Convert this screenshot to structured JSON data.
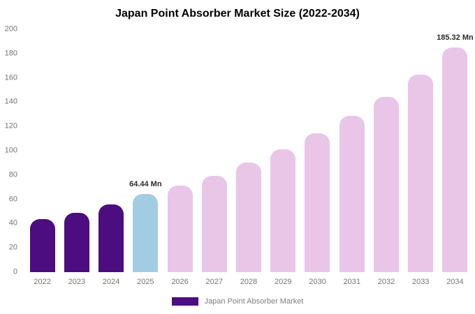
{
  "chart_data": {
    "type": "bar",
    "title": "Japan Point Absorber Market Size (2022-2034)",
    "categories": [
      "2022",
      "2023",
      "2024",
      "2025",
      "2026",
      "2027",
      "2028",
      "2029",
      "2030",
      "2031",
      "2032",
      "2033",
      "2034"
    ],
    "values": [
      43.5,
      49.0,
      55.5,
      64.44,
      71.0,
      79.5,
      90.0,
      101.0,
      114.5,
      128.5,
      144.5,
      162.5,
      185.32
    ],
    "xlabel": "",
    "ylabel": "",
    "ylim": [
      0,
      200
    ],
    "yticks": [
      0,
      20,
      40,
      60,
      80,
      100,
      120,
      140,
      160,
      180,
      200
    ],
    "grid": false,
    "legend_position": "bottom",
    "bar_colors": [
      "#4b0d80",
      "#4b0d80",
      "#4b0d80",
      "#a2cce2",
      "#e9c6e8",
      "#e9c6e8",
      "#e9c6e8",
      "#e9c6e8",
      "#e9c6e8",
      "#e9c6e8",
      "#e9c6e8",
      "#e9c6e8",
      "#e9c6e8"
    ],
    "annotations": [
      {
        "index": 3,
        "text": "64.44 Mn"
      },
      {
        "index": 12,
        "text": "185.32 Mn"
      }
    ]
  },
  "legend": {
    "label": "Japan Point Absorber Market",
    "swatch_color": "#4b0d80"
  }
}
